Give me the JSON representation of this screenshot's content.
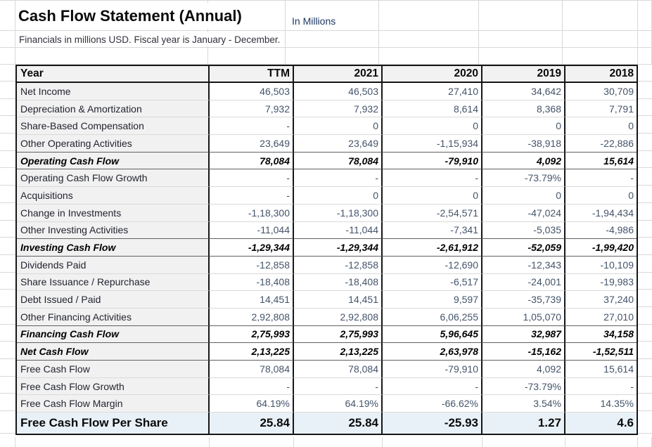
{
  "page": {
    "title": "Cash Flow Statement (Annual)",
    "unit_note": "In Millions",
    "subtitle": "Financials in millions USD. Fiscal year is January - December."
  },
  "table": {
    "columns": [
      "Year",
      "TTM",
      "2021",
      "2020",
      "2019",
      "2018"
    ],
    "rows": [
      {
        "label": "Net Income",
        "style": "normal",
        "values": [
          "46,503",
          "46,503",
          "27,410",
          "34,642",
          "30,709"
        ]
      },
      {
        "label": "Depreciation & Amortization",
        "style": "normal",
        "values": [
          "7,932",
          "7,932",
          "8,614",
          "8,368",
          "7,791"
        ]
      },
      {
        "label": "Share-Based Compensation",
        "style": "normal",
        "values": [
          "-",
          "0",
          "0",
          "0",
          "0"
        ]
      },
      {
        "label": "Other Operating Activities",
        "style": "normal",
        "values": [
          "23,649",
          "23,649",
          "-1,15,934",
          "-38,918",
          "-22,886"
        ]
      },
      {
        "label": "Operating Cash Flow",
        "style": "bold",
        "values": [
          "78,084",
          "78,084",
          "-79,910",
          "4,092",
          "15,614"
        ]
      },
      {
        "label": "Operating Cash Flow Growth",
        "style": "normal",
        "values": [
          "-",
          "-",
          "-",
          "-73.79%",
          "-"
        ]
      },
      {
        "label": "Acquisitions",
        "style": "normal",
        "values": [
          "-",
          "0",
          "0",
          "0",
          "0"
        ]
      },
      {
        "label": "Change in Investments",
        "style": "normal",
        "values": [
          "-1,18,300",
          "-1,18,300",
          "-2,54,571",
          "-47,024",
          "-1,94,434"
        ]
      },
      {
        "label": "Other Investing Activities",
        "style": "normal",
        "values": [
          "-11,044",
          "-11,044",
          "-7,341",
          "-5,035",
          "-4,986"
        ]
      },
      {
        "label": "Investing Cash Flow",
        "style": "bold",
        "values": [
          "-1,29,344",
          "-1,29,344",
          "-2,61,912",
          "-52,059",
          "-1,99,420"
        ]
      },
      {
        "label": "Dividends Paid",
        "style": "normal",
        "values": [
          "-12,858",
          "-12,858",
          "-12,690",
          "-12,343",
          "-10,109"
        ]
      },
      {
        "label": "Share Issuance / Repurchase",
        "style": "normal",
        "values": [
          "-18,408",
          "-18,408",
          "-6,517",
          "-24,001",
          "-19,983"
        ]
      },
      {
        "label": "Debt Issued / Paid",
        "style": "normal",
        "values": [
          "14,451",
          "14,451",
          "9,597",
          "-35,739",
          "37,240"
        ]
      },
      {
        "label": "Other Financing Activities",
        "style": "normal",
        "values": [
          "2,92,808",
          "2,92,808",
          "6,06,255",
          "1,05,070",
          "27,010"
        ]
      },
      {
        "label": "Financing Cash Flow",
        "style": "bold",
        "values": [
          "2,75,993",
          "2,75,993",
          "5,96,645",
          "32,987",
          "34,158"
        ]
      },
      {
        "label": "Net Cash Flow",
        "style": "bold",
        "values": [
          "2,13,225",
          "2,13,225",
          "2,63,978",
          "-15,162",
          "-1,52,511"
        ]
      },
      {
        "label": "Free Cash Flow",
        "style": "normal",
        "values": [
          "78,084",
          "78,084",
          "-79,910",
          "4,092",
          "15,614"
        ]
      },
      {
        "label": "Free Cash Flow Growth",
        "style": "normal",
        "values": [
          "-",
          "-",
          "-",
          "-73.79%",
          "-"
        ]
      },
      {
        "label": "Free Cash Flow Margin",
        "style": "normal",
        "values": [
          "64.19%",
          "64.19%",
          "-66.62%",
          "3.54%",
          "14.35%"
        ]
      },
      {
        "label": "Free Cash Flow Per Share",
        "style": "fcfps",
        "values": [
          "25.84",
          "25.84",
          "-25.93",
          "1.27",
          "4.6"
        ]
      }
    ]
  },
  "colors": {
    "header_bg": "#f2f2f2",
    "label_column_bg": "#f1f1f2",
    "highlight_row_bg": "#e9f1f8",
    "number_text": "#44546a",
    "label_text": "#23252e",
    "unit_note_text": "#1f3864",
    "table_border": "#161616",
    "gridline": "#d8d8d8"
  }
}
